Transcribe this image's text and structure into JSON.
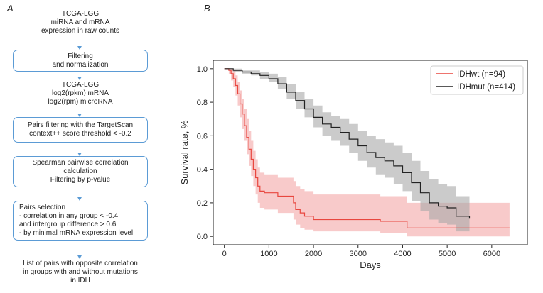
{
  "panels": {
    "left": "A",
    "right": "B"
  },
  "flowchart": {
    "nodes": [
      {
        "kind": "text",
        "text": "TCGA-LGG\nmiRNA and mRNA\nexpression in raw counts"
      },
      {
        "kind": "box",
        "text": "Filtering\nand normalization"
      },
      {
        "kind": "text",
        "text": "TCGA-LGG\nlog2(rpkm) mRNA\nlog2(rpm) microRNA"
      },
      {
        "kind": "box",
        "text": "Pairs filtering with the TargetScan\ncontext++ score threshold < -0.2"
      },
      {
        "kind": "box",
        "text": "Spearman pairwise correlation\ncalculation\nFiltering by p-value"
      },
      {
        "kind": "box",
        "text": "Pairs selection\n- correlation in any group < -0.4\n  and intergroup difference > 0.6\n- by minimal mRNA expression level"
      },
      {
        "kind": "text",
        "text": "List of pairs with opposite correlation\nin groups with and without mutations\nin IDH"
      }
    ]
  },
  "chart_data": {
    "type": "line",
    "xlabel": "Days",
    "ylabel": "Survival rate, %",
    "xlim": [
      -250,
      6800
    ],
    "ylim": [
      -0.05,
      1.05
    ],
    "xticks": [
      0,
      1000,
      2000,
      3000,
      4000,
      5000,
      6000
    ],
    "yticks": [
      0.0,
      0.2,
      0.4,
      0.6,
      0.8,
      1.0
    ],
    "legend_position": "top-right",
    "series": [
      {
        "name": "IDHwt (n=94)",
        "color": "#e8473f",
        "band_color": "#f4a6a6",
        "x": [
          0,
          100,
          150,
          200,
          250,
          300,
          350,
          400,
          450,
          500,
          550,
          600,
          650,
          700,
          750,
          800,
          900,
          1200,
          1550,
          1600,
          1700,
          1800,
          2000,
          3500,
          4050,
          4100,
          5000,
          6400
        ],
        "y": [
          1.0,
          0.99,
          0.97,
          0.94,
          0.9,
          0.85,
          0.79,
          0.73,
          0.66,
          0.59,
          0.52,
          0.46,
          0.4,
          0.35,
          0.3,
          0.27,
          0.26,
          0.24,
          0.2,
          0.16,
          0.14,
          0.12,
          0.1,
          0.09,
          0.09,
          0.05,
          0.05,
          0.05
        ],
        "lower": [
          1.0,
          0.97,
          0.93,
          0.89,
          0.84,
          0.78,
          0.71,
          0.64,
          0.57,
          0.49,
          0.42,
          0.36,
          0.3,
          0.25,
          0.2,
          0.17,
          0.16,
          0.14,
          0.1,
          0.07,
          0.05,
          0.04,
          0.03,
          0.02,
          0.02,
          0.0,
          0.0,
          0.0
        ],
        "upper": [
          1.0,
          1.0,
          1.0,
          0.99,
          0.96,
          0.92,
          0.87,
          0.82,
          0.76,
          0.7,
          0.63,
          0.57,
          0.51,
          0.46,
          0.41,
          0.38,
          0.37,
          0.35,
          0.33,
          0.3,
          0.28,
          0.27,
          0.25,
          0.24,
          0.24,
          0.2,
          0.2,
          0.2
        ]
      },
      {
        "name": "IDHmut (n=414)",
        "color": "#222222",
        "band_color": "#a9a9a9",
        "x": [
          0,
          200,
          400,
          600,
          800,
          1000,
          1200,
          1400,
          1600,
          1800,
          2000,
          2200,
          2400,
          2600,
          2800,
          3000,
          3200,
          3400,
          3600,
          3800,
          4000,
          4200,
          4400,
          4600,
          4800,
          5000,
          5200,
          5500
        ],
        "y": [
          1.0,
          0.99,
          0.98,
          0.97,
          0.96,
          0.94,
          0.91,
          0.86,
          0.81,
          0.76,
          0.71,
          0.67,
          0.65,
          0.62,
          0.58,
          0.54,
          0.5,
          0.47,
          0.45,
          0.42,
          0.38,
          0.32,
          0.26,
          0.2,
          0.18,
          0.17,
          0.12,
          0.11
        ],
        "lower": [
          1.0,
          0.98,
          0.97,
          0.96,
          0.94,
          0.92,
          0.88,
          0.82,
          0.76,
          0.71,
          0.65,
          0.6,
          0.57,
          0.54,
          0.5,
          0.45,
          0.41,
          0.37,
          0.35,
          0.31,
          0.27,
          0.21,
          0.15,
          0.1,
          0.08,
          0.07,
          0.03,
          0.02
        ],
        "upper": [
          1.0,
          1.0,
          0.99,
          0.99,
          0.98,
          0.97,
          0.95,
          0.91,
          0.86,
          0.82,
          0.78,
          0.74,
          0.72,
          0.7,
          0.67,
          0.63,
          0.6,
          0.58,
          0.56,
          0.54,
          0.5,
          0.45,
          0.39,
          0.34,
          0.31,
          0.3,
          0.24,
          0.23
        ]
      }
    ]
  }
}
